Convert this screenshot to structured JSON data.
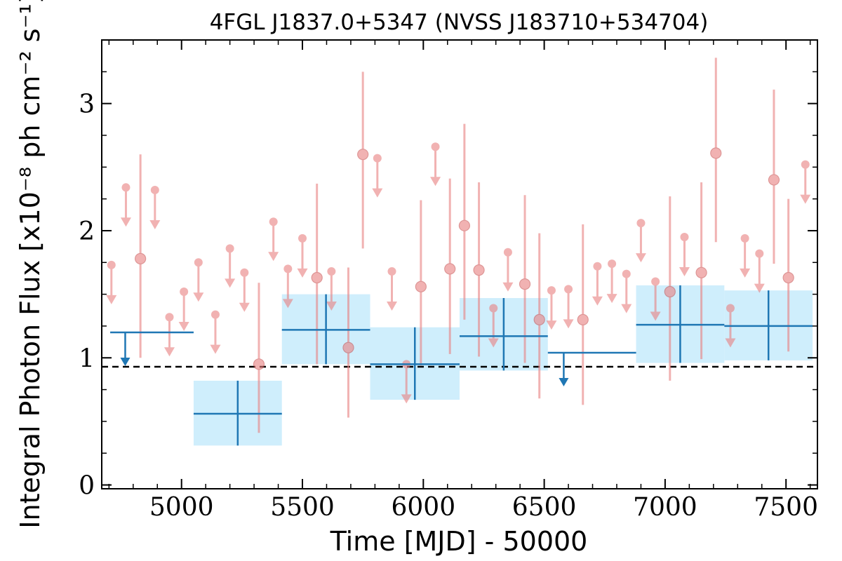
{
  "chart_data": {
    "type": "scatter",
    "title": "4FGL J1837.0+5347 (NVSS J183710+534704)",
    "xlabel": "Time [MJD] - 50000",
    "ylabel": "Integral Photon Flux [x10⁻⁸ ph cm⁻² s⁻¹]",
    "xlim": [
      4670,
      7630
    ],
    "ylim": [
      -0.03,
      3.5
    ],
    "x_ticks": [
      {
        "value": 5000,
        "label": "5000"
      },
      {
        "value": 5500,
        "label": "5500"
      },
      {
        "value": 6000,
        "label": "6000"
      },
      {
        "value": 6500,
        "label": "6500"
      },
      {
        "value": 7000,
        "label": "7000"
      },
      {
        "value": 7500,
        "label": "7500"
      }
    ],
    "y_ticks": [
      {
        "value": 0,
        "label": "0"
      },
      {
        "value": 1,
        "label": "1"
      },
      {
        "value": 2,
        "label": "2"
      },
      {
        "value": 3,
        "label": "3"
      }
    ],
    "reference_line": {
      "y": 0.93,
      "style": "dashed",
      "color": "#000000"
    },
    "grid": false,
    "colors": {
      "short_bins": "#e88080",
      "long_bins": "#1f77b4",
      "long_bins_fill": "#cfeefc"
    },
    "series": [
      {
        "kind": "short_bins",
        "points": [
          {
            "x": 4710,
            "y": 1.73,
            "ul": true
          },
          {
            "x": 4770,
            "y": 2.34,
            "ul": true
          },
          {
            "x": 4830,
            "y": 1.78,
            "lo": 1.0,
            "hi": 2.6
          },
          {
            "x": 4890,
            "y": 2.32,
            "ul": true
          },
          {
            "x": 4950,
            "y": 1.32,
            "ul": true
          },
          {
            "x": 5010,
            "y": 1.52,
            "ul": true
          },
          {
            "x": 5070,
            "y": 1.75,
            "ul": true
          },
          {
            "x": 5140,
            "y": 1.34,
            "ul": true
          },
          {
            "x": 5200,
            "y": 1.86,
            "ul": true
          },
          {
            "x": 5260,
            "y": 1.67,
            "ul": true
          },
          {
            "x": 5320,
            "y": 0.95,
            "lo": 0.41,
            "hi": 1.59
          },
          {
            "x": 5380,
            "y": 2.07,
            "ul": true
          },
          {
            "x": 5440,
            "y": 1.7,
            "ul": true
          },
          {
            "x": 5500,
            "y": 1.94,
            "ul": true
          },
          {
            "x": 5560,
            "y": 1.63,
            "lo": 0.95,
            "hi": 2.37
          },
          {
            "x": 5620,
            "y": 1.68,
            "ul": true
          },
          {
            "x": 5690,
            "y": 1.08,
            "lo": 0.53,
            "hi": 1.71
          },
          {
            "x": 5750,
            "y": 2.6,
            "lo": 1.86,
            "hi": 3.25
          },
          {
            "x": 5810,
            "y": 2.57,
            "ul": true
          },
          {
            "x": 5870,
            "y": 1.68,
            "ul": true
          },
          {
            "x": 5930,
            "y": 0.95,
            "ul": true
          },
          {
            "x": 5990,
            "y": 1.56,
            "lo": 0.94,
            "hi": 2.24
          },
          {
            "x": 6050,
            "y": 2.66,
            "ul": true
          },
          {
            "x": 6110,
            "y": 1.7,
            "lo": 1.03,
            "hi": 2.41
          },
          {
            "x": 6170,
            "y": 2.04,
            "lo": 1.3,
            "hi": 2.84
          },
          {
            "x": 6230,
            "y": 1.69,
            "lo": 1.01,
            "hi": 2.38
          },
          {
            "x": 6290,
            "y": 1.39,
            "ul": true
          },
          {
            "x": 6350,
            "y": 1.83,
            "ul": true
          },
          {
            "x": 6420,
            "y": 1.58,
            "lo": 0.96,
            "hi": 2.28
          },
          {
            "x": 6480,
            "y": 1.3,
            "lo": 0.68,
            "hi": 1.98
          },
          {
            "x": 6530,
            "y": 1.53,
            "ul": true
          },
          {
            "x": 6600,
            "y": 1.54,
            "ul": true
          },
          {
            "x": 6660,
            "y": 1.3,
            "lo": 0.63,
            "hi": 2.05
          },
          {
            "x": 6720,
            "y": 1.72,
            "ul": true
          },
          {
            "x": 6780,
            "y": 1.74,
            "ul": true
          },
          {
            "x": 6840,
            "y": 1.66,
            "ul": true
          },
          {
            "x": 6900,
            "y": 2.06,
            "ul": true
          },
          {
            "x": 6960,
            "y": 1.6,
            "ul": true
          },
          {
            "x": 7020,
            "y": 1.52,
            "lo": 0.82,
            "hi": 2.27
          },
          {
            "x": 7080,
            "y": 1.95,
            "ul": true
          },
          {
            "x": 7150,
            "y": 1.67,
            "lo": 0.99,
            "hi": 2.38
          },
          {
            "x": 7210,
            "y": 2.61,
            "lo": 1.91,
            "hi": 3.36
          },
          {
            "x": 7270,
            "y": 1.39,
            "ul": true
          },
          {
            "x": 7330,
            "y": 1.94,
            "ul": true
          },
          {
            "x": 7390,
            "y": 1.82,
            "ul": true
          },
          {
            "x": 7450,
            "y": 2.4,
            "lo": 1.74,
            "hi": 3.11
          },
          {
            "x": 7510,
            "y": 1.63,
            "lo": 1.05,
            "hi": 2.25
          },
          {
            "x": 7580,
            "y": 2.52,
            "ul": true
          }
        ]
      },
      {
        "kind": "long_bins",
        "bins": [
          {
            "x0": 4705,
            "x1": 5050,
            "y": 1.2,
            "ul": true
          },
          {
            "x0": 5050,
            "x1": 5415,
            "y": 0.56,
            "lo": 0.31,
            "hi": 0.82
          },
          {
            "x0": 5415,
            "x1": 5780,
            "y": 1.22,
            "lo": 0.95,
            "hi": 1.5
          },
          {
            "x0": 5780,
            "x1": 6150,
            "y": 0.95,
            "lo": 0.67,
            "hi": 1.24
          },
          {
            "x0": 6150,
            "x1": 6515,
            "y": 1.17,
            "lo": 0.9,
            "hi": 1.47
          },
          {
            "x0": 6515,
            "x1": 6880,
            "y": 1.04,
            "ul": true
          },
          {
            "x0": 6880,
            "x1": 7245,
            "y": 1.26,
            "lo": 0.96,
            "hi": 1.57
          },
          {
            "x0": 7245,
            "x1": 7610,
            "y": 1.25,
            "lo": 0.98,
            "hi": 1.53
          }
        ]
      }
    ]
  }
}
